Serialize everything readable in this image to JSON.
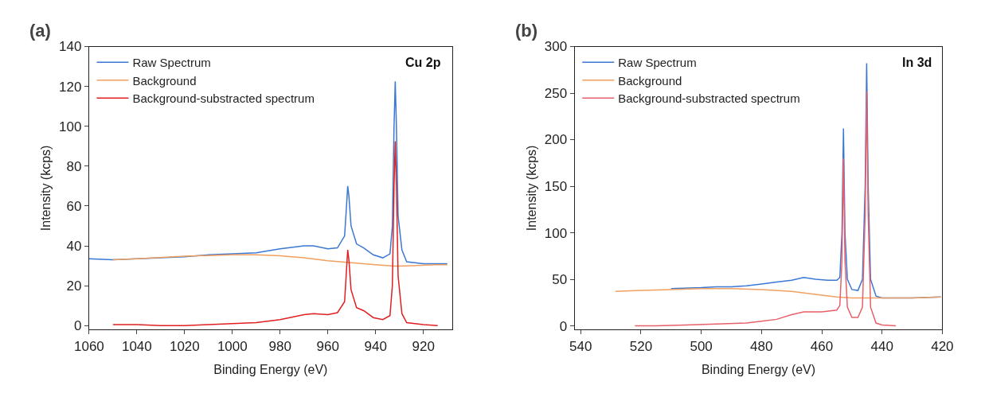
{
  "chart_data": [
    {
      "type": "line",
      "xlabel": "Binding Energy (eV)",
      "ylabel": "Intensity (kcps)",
      "annotations": [
        "(a)",
        "Cu 2p"
      ],
      "xlim": [
        1060,
        908
      ],
      "xticks": [
        1060,
        1040,
        1020,
        1000,
        980,
        960,
        940,
        920
      ],
      "ylim": [
        -2,
        140
      ],
      "yticks": [
        0,
        20,
        40,
        60,
        80,
        100,
        120,
        140
      ],
      "legend": "top left",
      "marker": "none",
      "line_style": "solid",
      "series": [
        {
          "name": "Raw Spectrum",
          "color": "#3a78d4",
          "x": [
            1060,
            1050,
            1040,
            1030,
            1020,
            1010,
            1000,
            990,
            980,
            970,
            966,
            960,
            956,
            953,
            952.2,
            951.7,
            951.2,
            950.3,
            948,
            945,
            941,
            937,
            934,
            933,
            932.3,
            931.8,
            931.3,
            930.6,
            929,
            927,
            920,
            910
          ],
          "values": [
            33.5,
            33,
            33.5,
            34,
            34.5,
            35.5,
            36,
            36.5,
            38.5,
            40,
            40,
            38.5,
            39,
            45,
            60,
            70,
            65,
            50,
            41,
            39,
            35.5,
            34,
            36,
            50,
            100,
            122.5,
            100,
            55,
            38,
            32,
            31,
            31
          ]
        },
        {
          "name": "Background",
          "color": "#f0a060",
          "x": [
            1050,
            1040,
            1020,
            1000,
            990,
            980,
            970,
            960,
            950,
            940,
            932,
            925,
            915,
            910
          ],
          "values": [
            33,
            33.5,
            34.8,
            35.5,
            35.5,
            35,
            34,
            32.5,
            31.5,
            30.5,
            29.8,
            30,
            30.5,
            30.5
          ]
        },
        {
          "name": "Background-substracted spectrum",
          "color": "#e02020",
          "x": [
            1050,
            1040,
            1030,
            1020,
            1010,
            1000,
            990,
            980,
            970,
            966,
            960,
            956,
            953,
            952.2,
            951.7,
            951.2,
            950.3,
            948,
            945,
            941,
            937,
            934,
            933,
            932.3,
            931.8,
            931.3,
            930.6,
            929,
            927,
            920,
            914
          ],
          "values": [
            0.5,
            0.5,
            0,
            0,
            0.5,
            1,
            1.5,
            3,
            5.5,
            6,
            5.5,
            6.5,
            12,
            28,
            38,
            33,
            18,
            9,
            7.5,
            4,
            3,
            5,
            20,
            70,
            92.5,
            70,
            25,
            6,
            1.5,
            0.5,
            0
          ]
        }
      ]
    },
    {
      "type": "line",
      "xlabel": "Binding Energy (eV)",
      "ylabel": "Intensity (kcps)",
      "annotations": [
        "(b)",
        "In 3d"
      ],
      "xlim": [
        542,
        420
      ],
      "xticks": [
        540,
        520,
        500,
        480,
        460,
        440,
        420
      ],
      "ylim": [
        -4,
        300
      ],
      "yticks": [
        0,
        50,
        100,
        150,
        200,
        250,
        300
      ],
      "legend": "top left",
      "marker": "none",
      "line_style": "solid",
      "series": [
        {
          "name": "Raw Spectrum",
          "color": "#3a78d4",
          "x": [
            510,
            500,
            495,
            490,
            485,
            480,
            475,
            470,
            466,
            462,
            458,
            455,
            454,
            453.3,
            452.8,
            452.3,
            451.5,
            450,
            448,
            446.5,
            445.6,
            445.1,
            444.6,
            443.8,
            442,
            440,
            430,
            420.5
          ],
          "values": [
            40,
            41,
            42,
            42,
            43,
            45,
            47,
            49,
            52,
            50,
            49,
            49,
            52,
            100,
            212,
            100,
            50,
            39,
            38,
            50,
            150,
            282,
            150,
            50,
            32,
            30,
            30,
            31
          ]
        },
        {
          "name": "Background",
          "color": "#f0a060",
          "x": [
            528.5,
            520,
            510,
            500,
            490,
            480,
            470,
            460,
            455,
            450,
            445,
            440,
            430,
            420.5
          ],
          "values": [
            37,
            38,
            39,
            40,
            40,
            39,
            37,
            33,
            31,
            30,
            30,
            30,
            30,
            31
          ]
        },
        {
          "name": "Background-substracted spectrum",
          "color": "#e8606a",
          "x": [
            522,
            515,
            505,
            495,
            485,
            480,
            475,
            470,
            466,
            460,
            455,
            454,
            453.3,
            452.8,
            452.3,
            451.5,
            450,
            448,
            446.5,
            445.6,
            445.1,
            444.6,
            443.8,
            442,
            440,
            435.4
          ],
          "values": [
            0,
            0,
            1,
            2,
            3,
            5,
            7,
            12,
            15,
            15,
            17,
            22,
            70,
            180,
            70,
            20,
            9,
            9,
            20,
            120,
            252,
            120,
            20,
            3,
            1,
            0
          ]
        }
      ]
    }
  ]
}
